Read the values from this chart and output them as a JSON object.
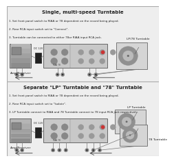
{
  "bg_color": "#f0eeee",
  "border_color": "#aaaaaa",
  "title1": "Single, multi-speed Turntable",
  "title2": "Separate \"LP\" Turntable and \"78\" Turntable",
  "notes1": [
    "1. Set front panel switch to RIAA or 78 dependent on the record being played.",
    "2. Rear RCA input switch set to \"Connect\".",
    "3. Turntable can be connected to either 78or RIAA input RCA jack."
  ],
  "notes2": [
    "1. Set front panel switch to RIAA or 78 dependent on the record being played.",
    "2. Rear RCA input switch set to \"Isolate\".",
    "3. LP Turntable connect to RIAA and 78 Turntable connect to 78 input RCA jack respectively."
  ],
  "label_amp": "Amp/Receiver",
  "label_lp78": "LP/78 Turntable",
  "label_lp": "LP Turntable",
  "label_78": "78 Turntable",
  "label_dc": "DC 12V",
  "amp_color": "#b0b0b0",
  "device_color": "#c0c0c0",
  "device_border": "#666666",
  "wire_color": "#777777",
  "arrow_color": "#444444",
  "text_color": "#222222",
  "title_fontsize": 5.0,
  "note_fontsize": 3.0,
  "label_fontsize": 3.2,
  "section_bg": "#eeeeee"
}
